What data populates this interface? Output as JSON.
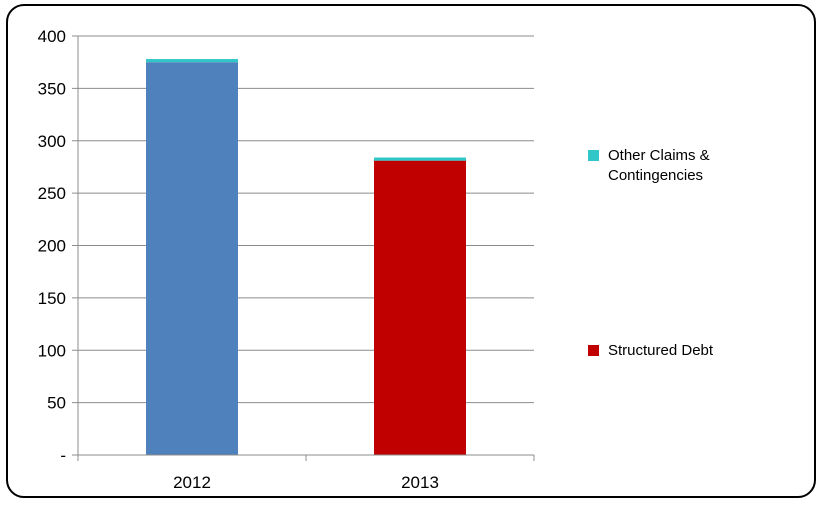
{
  "chart_data": {
    "type": "bar",
    "stacked": true,
    "categories": [
      "2012",
      "2013"
    ],
    "series": [
      {
        "name": "Structured Debt",
        "values": [
          375,
          281
        ],
        "colors": [
          "#4f81bd",
          "#c00000"
        ]
      },
      {
        "name": "Other Claims & Contingencies",
        "values": [
          3,
          3
        ],
        "colors": [
          "#31c6c8",
          "#31c6c8"
        ]
      }
    ],
    "ylim": [
      0,
      400
    ],
    "yticks": [
      0,
      50,
      100,
      150,
      200,
      250,
      300,
      350,
      400
    ],
    "ytick_labels": [
      "-",
      "50",
      "100",
      "150",
      "200",
      "250",
      "300",
      "350",
      "400"
    ],
    "grid": true,
    "legend": "right",
    "title": "",
    "xlabel": "",
    "ylabel": ""
  },
  "legend": {
    "items": [
      {
        "label": "Other Claims & Contingencies",
        "color": "#31c6c8"
      },
      {
        "label": "Structured Debt",
        "color": "#c00000"
      }
    ]
  }
}
